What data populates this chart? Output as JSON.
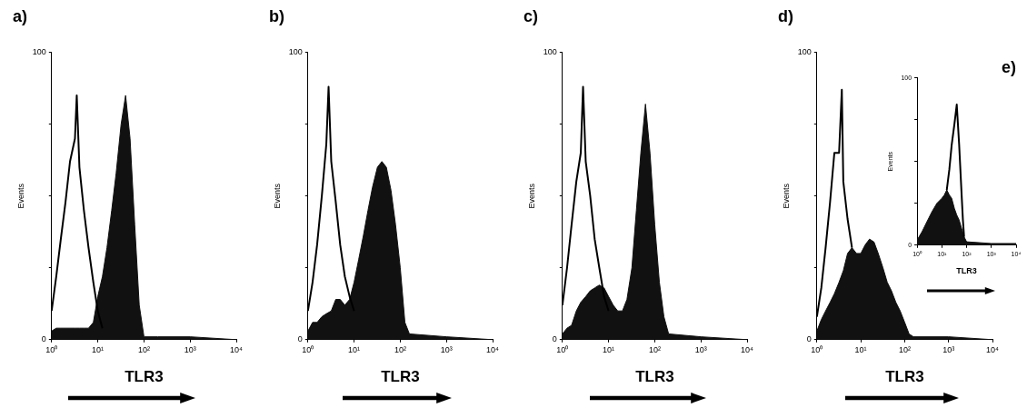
{
  "chart_data": [
    {
      "type": "area",
      "title": "a)",
      "xlabel": "TLR3",
      "ylabel": "Events",
      "log": "x",
      "xlim": [
        1,
        10000
      ],
      "ylim": [
        0,
        100
      ],
      "xticks": [
        {
          "value": 1,
          "label": "10⁰"
        },
        {
          "value": 10,
          "label": "10¹"
        },
        {
          "value": 100,
          "label": "10²"
        },
        {
          "value": 1000,
          "label": "10³"
        },
        {
          "value": 10000,
          "label": "10⁴"
        }
      ],
      "yticks": [
        {
          "value": 0,
          "label": "0"
        },
        {
          "value": 25,
          "label": null
        },
        {
          "value": 50,
          "label": null
        },
        {
          "value": 75,
          "label": null
        },
        {
          "value": 100,
          "label": "100"
        }
      ],
      "grid": false,
      "legend": false,
      "marker": "none",
      "series": [
        {
          "type": "line",
          "color": "#000000",
          "x": [
            1,
            1.26,
            1.58,
            2,
            2.5,
            3.2,
            3.5,
            4,
            5,
            6.3,
            8,
            10,
            12.6
          ],
          "values": [
            10,
            22,
            35,
            48,
            62,
            70,
            85,
            60,
            45,
            32,
            20,
            10,
            4
          ]
        },
        {
          "type": "area",
          "color": "#111111",
          "x": [
            1,
            1.26,
            1.58,
            2,
            2.5,
            3.2,
            4,
            5,
            6.3,
            8,
            10,
            12.6,
            15.8,
            20,
            25,
            32,
            40,
            50,
            63,
            79,
            100,
            200,
            1000,
            10000
          ],
          "values": [
            3,
            4,
            4,
            4,
            4,
            4,
            4,
            4,
            4,
            6,
            15,
            22,
            32,
            45,
            58,
            75,
            85,
            70,
            40,
            12,
            1,
            1,
            1,
            0
          ]
        }
      ]
    },
    {
      "type": "area",
      "title": "b)",
      "xlabel": "TLR3",
      "ylabel": "Events",
      "log": "x",
      "xlim": [
        1,
        10000
      ],
      "ylim": [
        0,
        100
      ],
      "xticks": [
        {
          "value": 1,
          "label": "10⁰"
        },
        {
          "value": 10,
          "label": "10¹"
        },
        {
          "value": 100,
          "label": "10²"
        },
        {
          "value": 1000,
          "label": "10³"
        },
        {
          "value": 10000,
          "label": "10⁴"
        }
      ],
      "yticks": [
        {
          "value": 0,
          "label": "0"
        },
        {
          "value": 25,
          "label": null
        },
        {
          "value": 50,
          "label": null
        },
        {
          "value": 75,
          "label": null
        },
        {
          "value": 100,
          "label": "100"
        }
      ],
      "grid": false,
      "legend": false,
      "marker": "none",
      "series": [
        {
          "type": "line",
          "color": "#000000",
          "x": [
            1,
            1.26,
            1.58,
            2,
            2.5,
            2.8,
            3.2,
            4,
            5,
            6.3,
            8,
            10
          ],
          "values": [
            10,
            20,
            33,
            50,
            68,
            88,
            62,
            48,
            33,
            22,
            15,
            10
          ]
        },
        {
          "type": "area",
          "color": "#111111",
          "x": [
            1,
            1.26,
            1.58,
            2,
            2.5,
            3.2,
            4,
            5,
            6.3,
            8,
            10,
            12.6,
            15.8,
            20,
            25,
            32,
            40,
            50,
            63,
            79,
            100,
            126,
            158,
            1000,
            10000
          ],
          "values": [
            3,
            6,
            6,
            8,
            9,
            10,
            14,
            14,
            12,
            14,
            20,
            28,
            36,
            45,
            53,
            60,
            62,
            60,
            52,
            40,
            25,
            6,
            2,
            1,
            0
          ]
        }
      ]
    },
    {
      "type": "area",
      "title": "c)",
      "xlabel": "TLR3",
      "ylabel": "Events",
      "log": "x",
      "xlim": [
        1,
        10000
      ],
      "ylim": [
        0,
        100
      ],
      "xticks": [
        {
          "value": 1,
          "label": "10⁰"
        },
        {
          "value": 10,
          "label": "10¹"
        },
        {
          "value": 100,
          "label": "10²"
        },
        {
          "value": 1000,
          "label": "10³"
        },
        {
          "value": 10000,
          "label": "10⁴"
        }
      ],
      "yticks": [
        {
          "value": 0,
          "label": "0"
        },
        {
          "value": 25,
          "label": null
        },
        {
          "value": 50,
          "label": null
        },
        {
          "value": 75,
          "label": null
        },
        {
          "value": 100,
          "label": "100"
        }
      ],
      "grid": false,
      "legend": false,
      "marker": "none",
      "series": [
        {
          "type": "line",
          "color": "#000000",
          "x": [
            1,
            1.26,
            1.58,
            2,
            2.5,
            2.8,
            3.2,
            4,
            5,
            6.3,
            8,
            10
          ],
          "values": [
            12,
            25,
            40,
            55,
            65,
            88,
            62,
            50,
            35,
            25,
            15,
            10
          ]
        },
        {
          "type": "area",
          "color": "#111111",
          "x": [
            1,
            1.26,
            1.58,
            2,
            2.5,
            3.2,
            4,
            5,
            6.3,
            8,
            10,
            12.6,
            15.8,
            20,
            25,
            32,
            40,
            50,
            63,
            79,
            100,
            126,
            158,
            200,
            1000,
            10000
          ],
          "values": [
            2,
            4,
            5,
            10,
            13,
            15,
            17,
            18,
            19,
            18,
            15,
            12,
            10,
            10,
            14,
            25,
            45,
            65,
            82,
            65,
            40,
            20,
            8,
            2,
            1,
            0
          ]
        }
      ]
    },
    {
      "type": "area",
      "title": "d)",
      "xlabel": "TLR3",
      "ylabel": "Events",
      "log": "x",
      "xlim": [
        1,
        10000
      ],
      "ylim": [
        0,
        100
      ],
      "xticks": [
        {
          "value": 1,
          "label": "10⁰"
        },
        {
          "value": 10,
          "label": "10¹"
        },
        {
          "value": 100,
          "label": "10²"
        },
        {
          "value": 1000,
          "label": "10³"
        },
        {
          "value": 10000,
          "label": "10⁴"
        }
      ],
      "yticks": [
        {
          "value": 0,
          "label": "0"
        },
        {
          "value": 25,
          "label": null
        },
        {
          "value": 50,
          "label": null
        },
        {
          "value": 75,
          "label": null
        },
        {
          "value": 100,
          "label": "100"
        }
      ],
      "grid": false,
      "legend": false,
      "marker": "none",
      "series": [
        {
          "type": "line",
          "color": "#000000",
          "x": [
            1,
            1.26,
            1.58,
            2,
            2.5,
            3.2,
            3.7,
            4,
            5,
            6.3
          ],
          "values": [
            8,
            18,
            32,
            48,
            65,
            65,
            87,
            55,
            42,
            32
          ]
        },
        {
          "type": "area",
          "color": "#111111",
          "x": [
            1,
            1.26,
            1.58,
            2,
            2.5,
            3.2,
            4,
            5,
            6.3,
            8,
            10,
            12.6,
            15.8,
            20,
            25,
            32,
            40,
            50,
            63,
            79,
            100,
            126,
            158,
            1000,
            10000
          ],
          "values": [
            3,
            7,
            10,
            13,
            16,
            20,
            24,
            30,
            32,
            30,
            30,
            33,
            35,
            34,
            30,
            25,
            20,
            17,
            13,
            10,
            6,
            2,
            1,
            1,
            0
          ]
        }
      ]
    },
    {
      "type": "area",
      "title": "e)",
      "xlabel": "TLR3",
      "ylabel": "Events",
      "log": "x",
      "xlim": [
        1,
        10000
      ],
      "ylim": [
        0,
        100
      ],
      "xticks": [
        {
          "value": 1,
          "label": "10⁰"
        },
        {
          "value": 10,
          "label": "10¹"
        },
        {
          "value": 100,
          "label": "10²"
        },
        {
          "value": 1000,
          "label": "10³"
        },
        {
          "value": 10000,
          "label": "10⁴"
        }
      ],
      "yticks": [
        {
          "value": 0,
          "label": "0"
        },
        {
          "value": 25,
          "label": null
        },
        {
          "value": 50,
          "label": null
        },
        {
          "value": 75,
          "label": null
        },
        {
          "value": 100,
          "label": "100"
        }
      ],
      "grid": false,
      "legend": false,
      "marker": "none",
      "series": [
        {
          "type": "line",
          "color": "#000000",
          "x": [
            15.8,
            20,
            25,
            32,
            40,
            50,
            63,
            71,
            79
          ],
          "values": [
            33,
            45,
            60,
            72,
            84,
            60,
            30,
            15,
            5
          ]
        },
        {
          "type": "area",
          "color": "#111111",
          "x": [
            1,
            1.58,
            2.5,
            4,
            6.3,
            10,
            12.6,
            15.8,
            20,
            25,
            32,
            40,
            50,
            63,
            79,
            100,
            1000,
            10000
          ],
          "values": [
            3,
            8,
            14,
            20,
            25,
            28,
            30,
            33,
            30,
            28,
            22,
            18,
            15,
            10,
            5,
            2,
            1,
            1
          ]
        }
      ]
    }
  ]
}
